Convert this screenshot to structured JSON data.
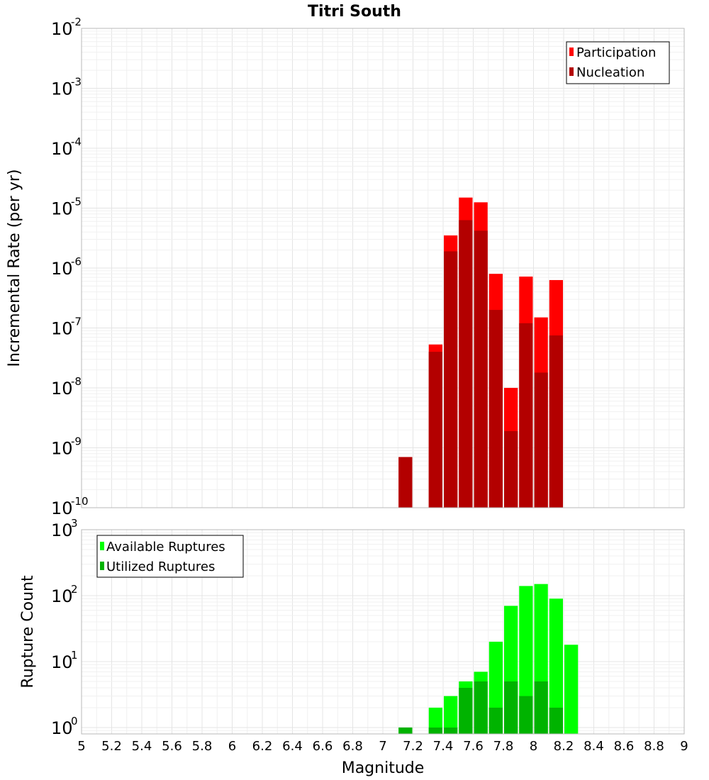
{
  "chart_data": [
    {
      "type": "bar",
      "title": "Titri South",
      "xlabel": "",
      "ylabel": "Incremental Rate (per yr)",
      "y_scale": "log",
      "ylim": [
        1e-10,
        0.01
      ],
      "y_ticks": [
        {
          "base": "10",
          "exp": "-10"
        },
        {
          "base": "10",
          "exp": "-9"
        },
        {
          "base": "10",
          "exp": "-8"
        },
        {
          "base": "10",
          "exp": "-7"
        },
        {
          "base": "10",
          "exp": "-6"
        },
        {
          "base": "10",
          "exp": "-5"
        },
        {
          "base": "10",
          "exp": "-4"
        },
        {
          "base": "10",
          "exp": "-3"
        },
        {
          "base": "10",
          "exp": "-2"
        }
      ],
      "xlim": [
        5,
        9
      ],
      "grid": true,
      "legend_position": "top-right",
      "series": [
        {
          "name": "Participation",
          "color": "#ff0000",
          "x": [
            7.15,
            7.35,
            7.45,
            7.55,
            7.65,
            7.75,
            7.85,
            7.95,
            8.05,
            8.15
          ],
          "values": [
            7e-10,
            5.3e-08,
            3.5e-06,
            1.5e-05,
            1.25e-05,
            8e-07,
            1e-08,
            7.2e-07,
            1.5e-07,
            6.3e-07
          ]
        },
        {
          "name": "Nucleation",
          "color": "#b30000",
          "x": [
            7.15,
            7.35,
            7.45,
            7.55,
            7.65,
            7.75,
            7.85,
            7.95,
            8.05,
            8.15
          ],
          "values": [
            7e-10,
            4e-08,
            1.9e-06,
            6.3e-06,
            4.2e-06,
            2e-07,
            1.9e-09,
            1.2e-07,
            1.8e-08,
            7.5e-08
          ]
        }
      ]
    },
    {
      "type": "bar",
      "title": "",
      "xlabel": "Magnitude",
      "ylabel": "Rupture Count",
      "y_scale": "log",
      "ylim": [
        0.8,
        1000
      ],
      "y_ticks": [
        {
          "base": "10",
          "exp": "0"
        },
        {
          "base": "10",
          "exp": "1"
        },
        {
          "base": "10",
          "exp": "2"
        },
        {
          "base": "10",
          "exp": "3"
        }
      ],
      "xlim": [
        5,
        9
      ],
      "x_ticks": [
        "5",
        "5.2",
        "5.4",
        "5.6",
        "5.8",
        "6",
        "6.2",
        "6.4",
        "6.6",
        "6.8",
        "7",
        "7.2",
        "7.4",
        "7.6",
        "7.8",
        "8",
        "8.2",
        "8.4",
        "8.6",
        "8.8",
        "9"
      ],
      "grid": true,
      "legend_position": "top-left",
      "series": [
        {
          "name": "Available Ruptures",
          "color": "#00ff00",
          "x": [
            7.15,
            7.35,
            7.45,
            7.55,
            7.65,
            7.75,
            7.85,
            7.95,
            8.05,
            8.15,
            8.25
          ],
          "values": [
            1,
            2,
            3,
            5,
            7,
            20,
            70,
            140,
            150,
            90,
            18
          ]
        },
        {
          "name": "Utilized Ruptures",
          "color": "#00b300",
          "x": [
            7.15,
            7.35,
            7.45,
            7.55,
            7.65,
            7.75,
            7.85,
            7.95,
            8.05,
            8.15
          ],
          "values": [
            1,
            1,
            1,
            4,
            5,
            2,
            5,
            3,
            5,
            2
          ]
        }
      ]
    }
  ]
}
